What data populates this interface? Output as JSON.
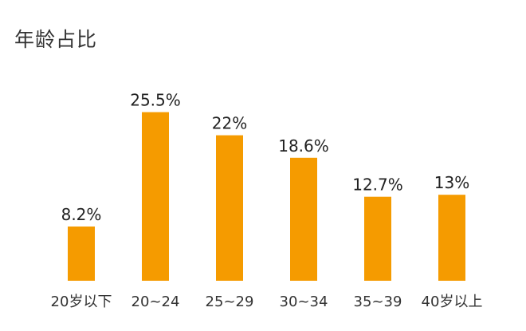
{
  "chart_data": {
    "type": "bar",
    "title": "年龄占比",
    "categories": [
      "20岁以下",
      "20~24",
      "25~29",
      "30~34",
      "35~39",
      "40岁以上"
    ],
    "values": [
      8.2,
      25.5,
      22,
      18.6,
      12.7,
      13
    ],
    "value_labels": [
      "8.2%",
      "25.5%",
      "22%",
      "18.6%",
      "12.7%",
      "13%"
    ],
    "unit": "%",
    "xlabel": "",
    "ylabel": "",
    "grid": false,
    "legend": "none",
    "bar_color": "#f59b00"
  }
}
